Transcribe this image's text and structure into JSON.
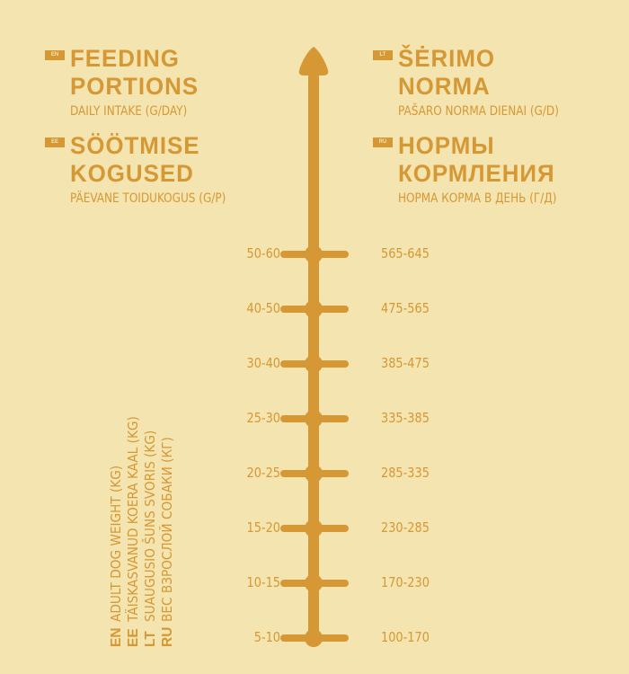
{
  "colors": {
    "background": "#f4e4b0",
    "accent": "#d69835"
  },
  "sections": [
    {
      "code": "EN",
      "title": [
        "FEEDING",
        "PORTIONS"
      ],
      "subtitle": "DAILY INTAKE (G/DAY)"
    },
    {
      "code": "EE",
      "title": [
        "SÖÖTMISE",
        "KOGUSED"
      ],
      "subtitle": "PÄEVANE TOIDUKOGUS (G/P)"
    },
    {
      "code": "LT",
      "title": [
        "ŠĖRIMO",
        "NORMA"
      ],
      "subtitle": "PAŠARO NORMA DIENAI (G/D)"
    },
    {
      "code": "RU",
      "title": [
        "НОРМЫ",
        "КОРМЛЕНИЯ"
      ],
      "subtitle": "НОРМА КОРМА В ДЕНЬ (Г/Д)"
    }
  ],
  "rows": [
    {
      "weight": "50-60",
      "portion": "565-645"
    },
    {
      "weight": "40-50",
      "portion": "475-565"
    },
    {
      "weight": "30-40",
      "portion": "385-475"
    },
    {
      "weight": "25-30",
      "portion": "335-385"
    },
    {
      "weight": "20-25",
      "portion": "285-335"
    },
    {
      "weight": "15-20",
      "portion": "230-285"
    },
    {
      "weight": "10-15",
      "portion": "170-230"
    },
    {
      "weight": "5-10",
      "portion": "100-170"
    }
  ],
  "weight_legend": [
    {
      "code": "EN",
      "label": "ADULT DOG WEIGHT (KG)"
    },
    {
      "code": "EE",
      "label": "TÄISKASVANUD KOERA KAAL (KG)"
    },
    {
      "code": "LT",
      "label": "SUAUGUSIO ŠUNS SVORIS (KG)"
    },
    {
      "code": "RU",
      "label": "ВЕС ВЗРОСЛОЙ СОБАКИ (КГ)"
    }
  ]
}
